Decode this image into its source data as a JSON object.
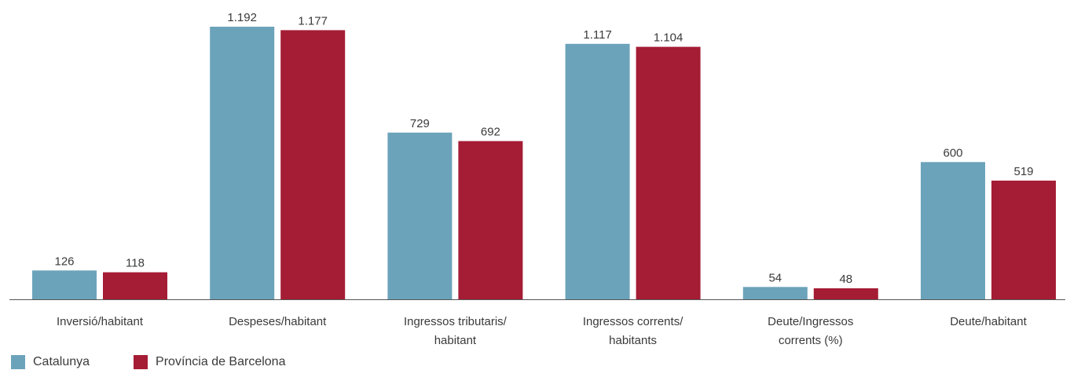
{
  "chart_data": {
    "type": "bar",
    "categories": [
      [
        "Inversió/habitant"
      ],
      [
        "Despeses/habitant"
      ],
      [
        "Ingressos tributaris/",
        "habitant"
      ],
      [
        "Ingressos corrents/",
        "habitants"
      ],
      [
        "Deute/Ingressos",
        "corrents (%)"
      ],
      [
        "Deute/habitant"
      ]
    ],
    "series": [
      {
        "name": "Catalunya",
        "color": "#6ba3ba",
        "values": [
          126,
          1192,
          729,
          1117,
          54,
          600
        ],
        "labels": [
          "126",
          "1.192",
          "729",
          "1.117",
          "54",
          "600"
        ]
      },
      {
        "name": "Província de Barcelona",
        "color": "#a51c35",
        "values": [
          118,
          1177,
          692,
          1104,
          48,
          519
        ],
        "labels": [
          "118",
          "1.177",
          "692",
          "1.104",
          "48",
          "519"
        ]
      }
    ],
    "ylim": [
      0,
      1192
    ],
    "grid": false,
    "legend_position": "bottom-left"
  }
}
